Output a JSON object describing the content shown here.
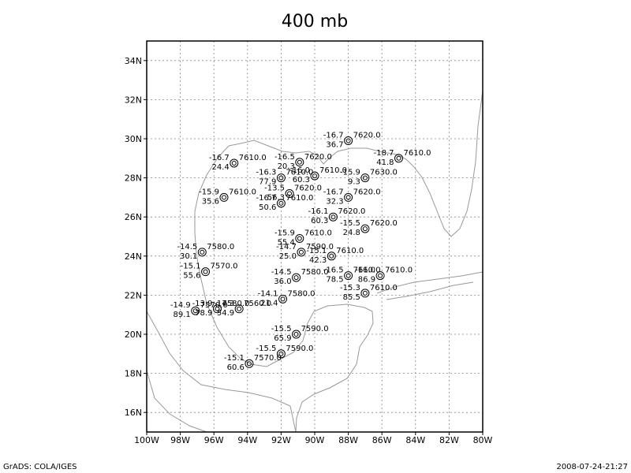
{
  "title": "400 mb",
  "footer_left": "GrADS: COLA/IGES",
  "footer_right": "2008-07-24-21:27",
  "lon_range": [
    -100,
    -80
  ],
  "lat_range": [
    15,
    35
  ],
  "lon_ticks": [
    {
      "value": -100,
      "label": "100W"
    },
    {
      "value": -98,
      "label": "98W"
    },
    {
      "value": -96,
      "label": "96W"
    },
    {
      "value": -94,
      "label": "94W"
    },
    {
      "value": -92,
      "label": "92W"
    },
    {
      "value": -90,
      "label": "90W"
    },
    {
      "value": -88,
      "label": "88W"
    },
    {
      "value": -86,
      "label": "86W"
    },
    {
      "value": -84,
      "label": "84W"
    },
    {
      "value": -82,
      "label": "82W"
    },
    {
      "value": -80,
      "label": "80W"
    }
  ],
  "lat_ticks": [
    {
      "value": 16,
      "label": "16N"
    },
    {
      "value": 18,
      "label": "18N"
    },
    {
      "value": 20,
      "label": "20N"
    },
    {
      "value": 22,
      "label": "22N"
    },
    {
      "value": 24,
      "label": "24N"
    },
    {
      "value": 26,
      "label": "26N"
    },
    {
      "value": 28,
      "label": "28N"
    },
    {
      "value": 30,
      "label": "30N"
    },
    {
      "value": 32,
      "label": "32N"
    },
    {
      "value": 34,
      "label": "34N"
    }
  ],
  "stations": [
    {
      "lon": -94.8,
      "lat": 28.75,
      "temp": "-16.7",
      "height": "7610.0",
      "dew": "24.4"
    },
    {
      "lon": -90.9,
      "lat": 28.8,
      "temp": "-16.5",
      "height": "7620.0",
      "dew": "20.3"
    },
    {
      "lon": -88.0,
      "lat": 29.9,
      "temp": "-16.7",
      "height": "7620.0",
      "dew": "36.7"
    },
    {
      "lon": -85.0,
      "lat": 29.0,
      "temp": "-18.7",
      "height": "7610.0",
      "dew": "41.8"
    },
    {
      "lon": -92.0,
      "lat": 28.0,
      "temp": "-16.3",
      "height": "7610.0",
      "dew": "77.9"
    },
    {
      "lon": -90.0,
      "lat": 28.1,
      "temp": "-16.0",
      "height": "7610.0",
      "dew": "60.3"
    },
    {
      "lon": -87.0,
      "lat": 28.0,
      "temp": "-15.9",
      "height": "7630.0",
      "dew": "9.3"
    },
    {
      "lon": -95.4,
      "lat": 27.0,
      "temp": "-15.9",
      "height": "7610.0",
      "dew": "35.6"
    },
    {
      "lon": -91.5,
      "lat": 27.2,
      "temp": "-13.5",
      "height": "7620.0",
      "dew": "56.3"
    },
    {
      "lon": -92.0,
      "lat": 26.7,
      "temp": "-16.7",
      "height": "7610.0",
      "dew": "50.6"
    },
    {
      "lon": -88.0,
      "lat": 27.0,
      "temp": "-16.7",
      "height": "7620.0",
      "dew": "32.3"
    },
    {
      "lon": -88.9,
      "lat": 26.0,
      "temp": "-16.1",
      "height": "7620.0",
      "dew": "60.3"
    },
    {
      "lon": -87.0,
      "lat": 25.4,
      "temp": "-15.5",
      "height": "7620.0",
      "dew": "24.8"
    },
    {
      "lon": -90.9,
      "lat": 24.9,
      "temp": "-15.9",
      "height": "7610.0",
      "dew": "55.4"
    },
    {
      "lon": -90.8,
      "lat": 24.2,
      "temp": "-14.7",
      "height": "7590.0",
      "dew": "25.0"
    },
    {
      "lon": -89.0,
      "lat": 24.0,
      "temp": "-15.1",
      "height": "7610.0",
      "dew": "42.3"
    },
    {
      "lon": -96.7,
      "lat": 24.2,
      "temp": "-14.5",
      "height": "7580.0",
      "dew": "30.1"
    },
    {
      "lon": -96.5,
      "lat": 23.2,
      "temp": "-15.1",
      "height": "7570.0",
      "dew": "55.6"
    },
    {
      "lon": -91.1,
      "lat": 22.9,
      "temp": "-14.5",
      "height": "7580.0",
      "dew": "36.0"
    },
    {
      "lon": -88.0,
      "lat": 23.0,
      "temp": "-16.5",
      "height": "7610.0",
      "dew": "78.5"
    },
    {
      "lon": -86.1,
      "lat": 23.0,
      "temp": "-16.0",
      "height": "7610.0",
      "dew": "86.9"
    },
    {
      "lon": -87.0,
      "lat": 22.1,
      "temp": "-15.3",
      "height": "7610.0",
      "dew": "85.5"
    },
    {
      "lon": -91.9,
      "lat": 21.8,
      "temp": "-14.1",
      "height": "7580.0",
      "dew": "21.4"
    },
    {
      "lon": -97.1,
      "lat": 21.2,
      "temp": "-14.9",
      "height": "7570.0",
      "dew": "89.1"
    },
    {
      "lon": -95.8,
      "lat": 21.3,
      "temp": "-13.9",
      "height": "7580.0",
      "dew": "78.9"
    },
    {
      "lon": -94.5,
      "lat": 21.3,
      "temp": "-14.3",
      "height": "7560.0",
      "dew": "54.9"
    },
    {
      "lon": -91.1,
      "lat": 20.0,
      "temp": "-15.5",
      "height": "7590.0",
      "dew": "65.9"
    },
    {
      "lon": -92.0,
      "lat": 19.0,
      "temp": "-15.5",
      "height": "7590.0"
    },
    {
      "lon": -93.9,
      "lat": 18.5,
      "temp": "-15.1",
      "height": "7570.0",
      "dew": "60.6"
    }
  ]
}
